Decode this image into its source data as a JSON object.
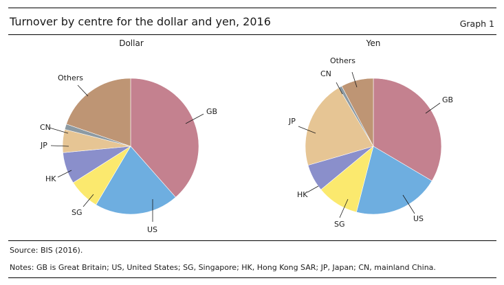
{
  "header": {
    "title": "Turnover by centre for the dollar and yen, 2016",
    "graph_label": "Graph 1"
  },
  "footer": {
    "source": "Source: BIS (2016).",
    "notes": "Notes: GB is Great Britain; US, United States; SG, Singapore; HK, Hong Kong SAR; JP, Japan; CN, mainland China."
  },
  "colors": {
    "GB": "#c4818f",
    "US": "#6eaee0",
    "SG": "#fbe96e",
    "HK": "#8a8fcb",
    "JP": "#e6c594",
    "CN": "#8c9aa3",
    "Others": "#be9574"
  },
  "chart_data": [
    {
      "type": "pie",
      "title": "Dollar",
      "categories": [
        "GB",
        "US",
        "SG",
        "HK",
        "JP",
        "CN",
        "Others"
      ],
      "values": [
        38.5,
        20.0,
        7.5,
        7.5,
        5.5,
        1.3,
        19.7
      ],
      "start": "12 o'clock",
      "direction": "clockwise"
    },
    {
      "type": "pie",
      "title": "Yen",
      "categories": [
        "GB",
        "US",
        "SG",
        "HK",
        "JP",
        "CN",
        "Others"
      ],
      "values": [
        33.5,
        20.5,
        10.0,
        6.5,
        21.0,
        0.8,
        7.7
      ],
      "start": "12 o'clock",
      "direction": "clockwise"
    }
  ]
}
